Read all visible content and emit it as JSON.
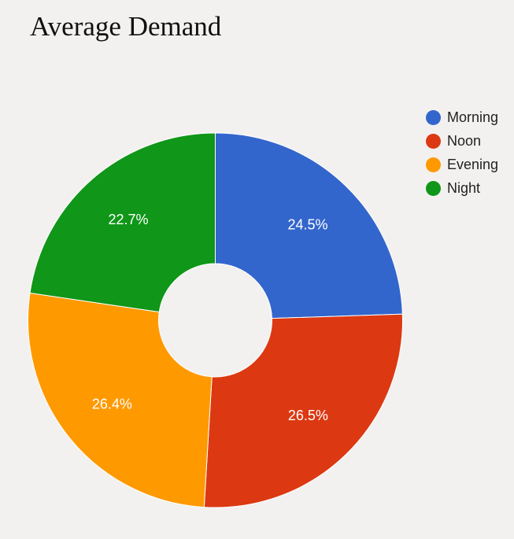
{
  "chart_data": {
    "type": "pie",
    "title": "Average Demand",
    "donut": true,
    "categories": [
      "Morning",
      "Noon",
      "Evening",
      "Night"
    ],
    "values": [
      24.5,
      26.5,
      26.4,
      22.7
    ],
    "data_labels": [
      "24.5%",
      "26.5%",
      "26.4%",
      "22.7%"
    ],
    "colors": [
      "#3366cc",
      "#dc3912",
      "#ff9900",
      "#109618"
    ],
    "legend_position": "right",
    "start_angle": "12 o'clock",
    "direction": "clockwise"
  }
}
